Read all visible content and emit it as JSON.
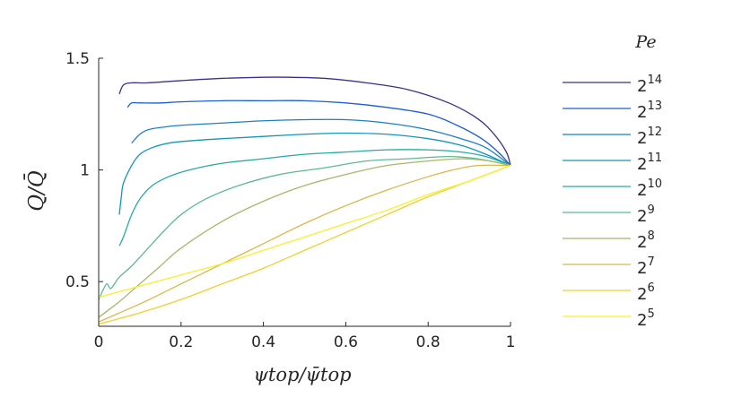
{
  "chart_data": {
    "type": "line",
    "xlabel": "ψtop/ψ̄top",
    "ylabel": "Q/Q̄",
    "xlim": [
      0,
      1
    ],
    "ylim": [
      0.3,
      1.5
    ],
    "xticks": [
      "0",
      "0.2",
      "0.4",
      "0.6",
      "0.8",
      "1"
    ],
    "xtick_values": [
      0,
      0.2,
      0.4,
      0.6,
      0.8,
      1
    ],
    "yticks": [
      "0.5",
      "1",
      "1.5"
    ],
    "ytick_values": [
      0.5,
      1,
      1.5
    ],
    "grid": false,
    "legend": {
      "title": "Pe",
      "placement": "right"
    },
    "series": [
      {
        "name": "2^14",
        "label_base": "2",
        "label_exp": "14",
        "color": "#3e2f8b",
        "x": [
          0.05,
          0.06,
          0.08,
          0.12,
          0.2,
          0.3,
          0.4,
          0.46,
          0.55,
          0.65,
          0.75,
          0.85,
          0.92,
          0.96,
          0.99,
          1.0
        ],
        "y": [
          1.34,
          1.38,
          1.39,
          1.39,
          1.4,
          1.41,
          1.415,
          1.415,
          1.41,
          1.39,
          1.36,
          1.3,
          1.23,
          1.16,
          1.08,
          1.02
        ]
      },
      {
        "name": "2^13",
        "label_base": "2",
        "label_exp": "13",
        "color": "#1c5fd0",
        "x": [
          0.07,
          0.08,
          0.1,
          0.15,
          0.2,
          0.3,
          0.4,
          0.5,
          0.6,
          0.7,
          0.8,
          0.87,
          0.93,
          0.97,
          1.0
        ],
        "y": [
          1.28,
          1.3,
          1.3,
          1.3,
          1.305,
          1.31,
          1.31,
          1.31,
          1.3,
          1.28,
          1.25,
          1.2,
          1.14,
          1.08,
          1.02
        ]
      },
      {
        "name": "2^12",
        "label_base": "2",
        "label_exp": "12",
        "color": "#1b7fc4",
        "x": [
          0.08,
          0.1,
          0.12,
          0.15,
          0.2,
          0.3,
          0.4,
          0.5,
          0.6,
          0.7,
          0.8,
          0.88,
          0.94,
          1.0
        ],
        "y": [
          1.12,
          1.16,
          1.18,
          1.19,
          1.2,
          1.21,
          1.22,
          1.225,
          1.225,
          1.21,
          1.18,
          1.14,
          1.1,
          1.02
        ]
      },
      {
        "name": "2^11",
        "label_base": "2",
        "label_exp": "11",
        "color": "#1396b8",
        "x": [
          0.05,
          0.055,
          0.06,
          0.08,
          0.1,
          0.13,
          0.17,
          0.22,
          0.3,
          0.4,
          0.5,
          0.6,
          0.7,
          0.8,
          0.88,
          0.94,
          1.0
        ],
        "y": [
          0.8,
          0.88,
          0.94,
          1.02,
          1.07,
          1.1,
          1.12,
          1.13,
          1.14,
          1.15,
          1.16,
          1.165,
          1.16,
          1.14,
          1.11,
          1.07,
          1.02
        ]
      },
      {
        "name": "2^10",
        "label_base": "2",
        "label_exp": "10",
        "color": "#25aaa6",
        "x": [
          0.05,
          0.06,
          0.08,
          0.1,
          0.13,
          0.17,
          0.22,
          0.3,
          0.4,
          0.5,
          0.6,
          0.7,
          0.8,
          0.88,
          0.94,
          1.0
        ],
        "y": [
          0.66,
          0.7,
          0.8,
          0.87,
          0.93,
          0.97,
          1.0,
          1.03,
          1.05,
          1.07,
          1.08,
          1.09,
          1.09,
          1.08,
          1.06,
          1.02
        ]
      },
      {
        "name": "2^9",
        "label_base": "2",
        "label_exp": "9",
        "color": "#5bbb8f",
        "x": [
          0.0,
          0.01,
          0.02,
          0.03,
          0.05,
          0.08,
          0.12,
          0.16,
          0.2,
          0.26,
          0.34,
          0.44,
          0.55,
          0.65,
          0.75,
          0.85,
          0.92,
          1.0
        ],
        "y": [
          0.42,
          0.46,
          0.49,
          0.47,
          0.52,
          0.57,
          0.65,
          0.73,
          0.8,
          0.87,
          0.93,
          0.98,
          1.01,
          1.04,
          1.05,
          1.06,
          1.05,
          1.02
        ]
      },
      {
        "name": "2^8",
        "label_base": "2",
        "label_exp": "8",
        "color": "#a5b86a",
        "x": [
          0.0,
          0.05,
          0.1,
          0.15,
          0.2,
          0.3,
          0.4,
          0.5,
          0.6,
          0.7,
          0.8,
          0.88,
          0.95,
          1.0
        ],
        "y": [
          0.34,
          0.41,
          0.49,
          0.57,
          0.65,
          0.77,
          0.86,
          0.93,
          0.98,
          1.02,
          1.04,
          1.05,
          1.04,
          1.02
        ]
      },
      {
        "name": "2^7",
        "label_base": "2",
        "label_exp": "7",
        "color": "#dcb64a",
        "x": [
          0.0,
          0.1,
          0.2,
          0.3,
          0.4,
          0.5,
          0.6,
          0.7,
          0.8,
          0.86,
          0.92,
          1.0
        ],
        "y": [
          0.32,
          0.4,
          0.49,
          0.58,
          0.67,
          0.76,
          0.84,
          0.91,
          0.97,
          1.0,
          1.02,
          1.02
        ]
      },
      {
        "name": "2^6",
        "label_base": "2",
        "label_exp": "6",
        "color": "#f1cf2d",
        "x": [
          0.0,
          0.1,
          0.2,
          0.3,
          0.4,
          0.5,
          0.6,
          0.7,
          0.8,
          0.9,
          1.0
        ],
        "y": [
          0.31,
          0.36,
          0.42,
          0.49,
          0.56,
          0.64,
          0.72,
          0.8,
          0.88,
          0.95,
          1.02
        ]
      },
      {
        "name": "2^5",
        "label_base": "2",
        "label_exp": "5",
        "color": "#f7f02c",
        "x": [
          0.0,
          0.1,
          0.2,
          0.3,
          0.4,
          0.5,
          0.6,
          0.7,
          0.8,
          0.9,
          1.0
        ],
        "y": [
          0.43,
          0.48,
          0.53,
          0.58,
          0.64,
          0.7,
          0.76,
          0.82,
          0.89,
          0.95,
          1.02
        ]
      }
    ]
  }
}
